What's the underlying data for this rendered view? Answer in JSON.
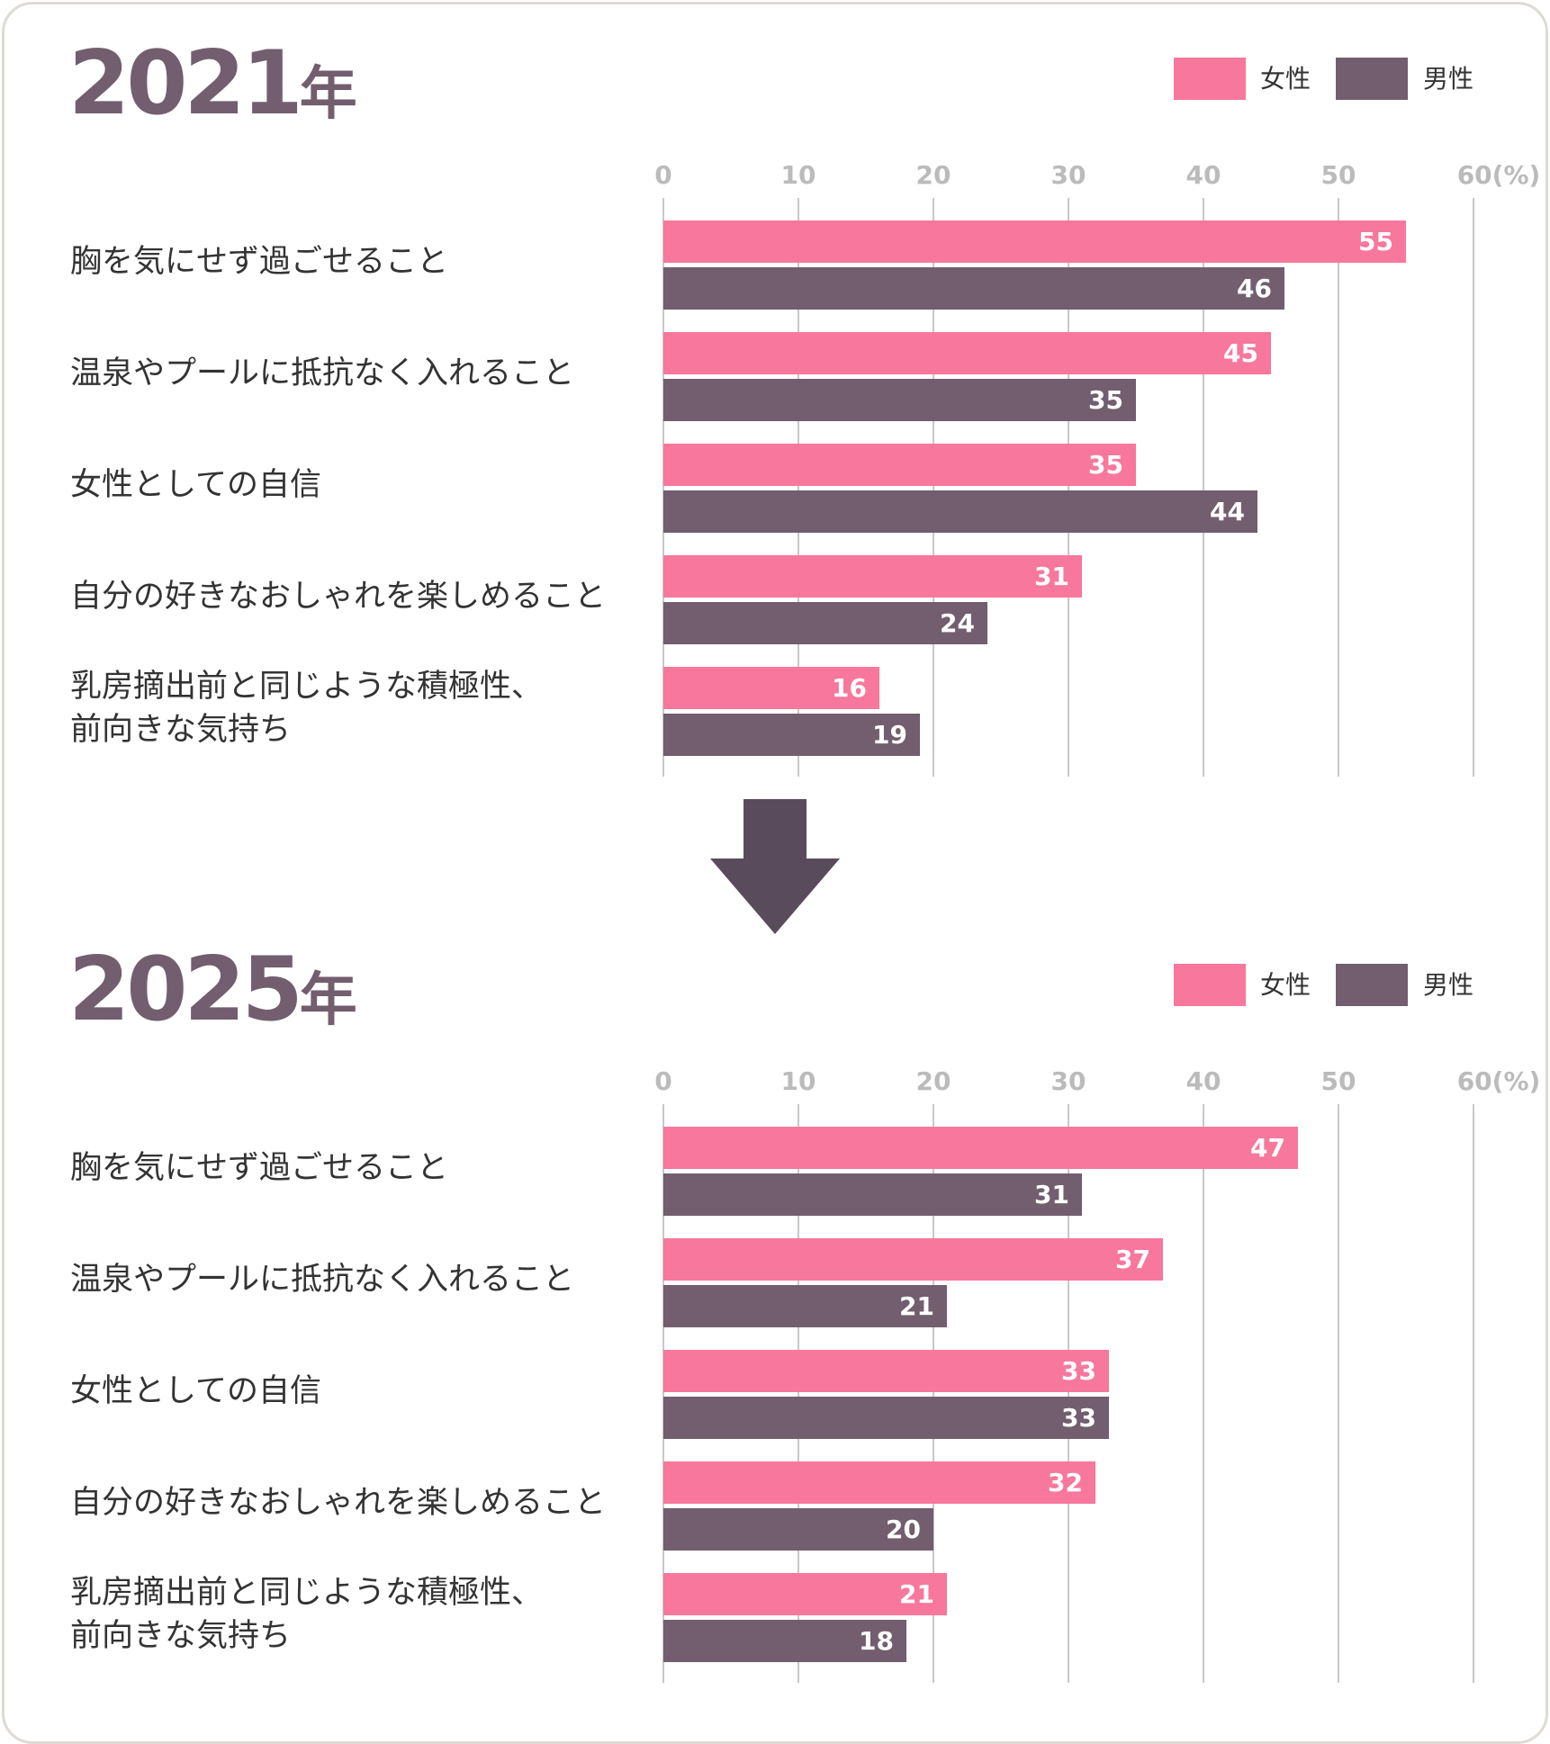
{
  "legend": {
    "female": "女性",
    "male": "男性"
  },
  "colors": {
    "female": "#F7789C",
    "male": "#725E6F",
    "arrow": "#5A4B5C"
  },
  "chart_data": [
    {
      "type": "bar",
      "orientation": "horizontal",
      "title": "2021",
      "title_suffix": "年",
      "xlim": [
        0,
        60
      ],
      "ticks": [
        "0",
        "10",
        "20",
        "30",
        "40",
        "50",
        "60(%)"
      ],
      "grid": true,
      "legend": "top-right",
      "categories": [
        "胸を気にせず過ごせること",
        "温泉やプールに抵抗なく入れること",
        "女性としての自信",
        "自分の好きなおしゃれを楽しめること",
        "乳房摘出前と同じような積極性、\n前向きな気持ち"
      ],
      "series": [
        {
          "name": "女性",
          "values": [
            55,
            45,
            35,
            31,
            16
          ]
        },
        {
          "name": "男性",
          "values": [
            46,
            35,
            44,
            24,
            19
          ]
        }
      ]
    },
    {
      "type": "bar",
      "orientation": "horizontal",
      "title": "2025",
      "title_suffix": "年",
      "xlim": [
        0,
        60
      ],
      "ticks": [
        "0",
        "10",
        "20",
        "30",
        "40",
        "50",
        "60(%)"
      ],
      "grid": true,
      "legend": "top-right",
      "categories": [
        "胸を気にせず過ごせること",
        "温泉やプールに抵抗なく入れること",
        "女性としての自信",
        "自分の好きなおしゃれを楽しめること",
        "乳房摘出前と同じような積極性、\n前向きな気持ち"
      ],
      "series": [
        {
          "name": "女性",
          "values": [
            47,
            37,
            33,
            32,
            21
          ]
        },
        {
          "name": "男性",
          "values": [
            31,
            21,
            33,
            20,
            18
          ]
        }
      ]
    }
  ]
}
